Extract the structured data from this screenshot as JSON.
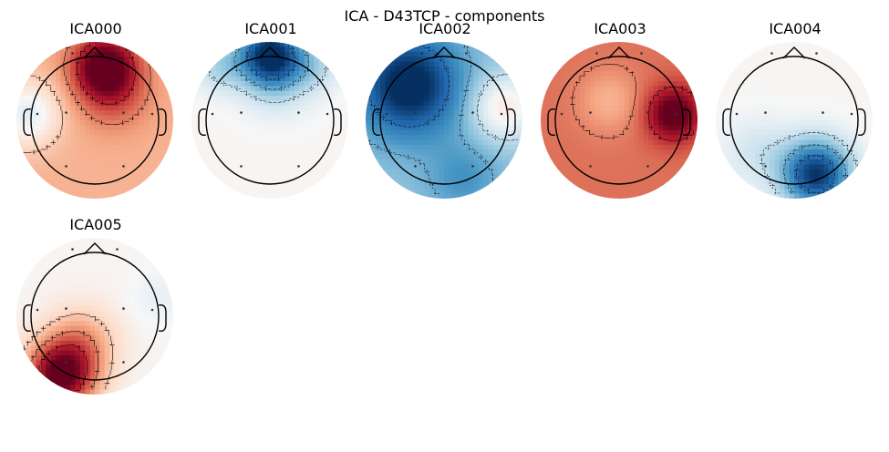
{
  "figure": {
    "title": "ICA - D43TCP - components"
  },
  "chart_data": {
    "type": "heatmap",
    "title": "ICA - D43TCP - components",
    "colormap": "RdBu_r",
    "colormap_stops": [
      "#053061",
      "#2166ac",
      "#4393c3",
      "#92c5de",
      "#d1e5f0",
      "#f7f7f7",
      "#fddbc7",
      "#f4a582",
      "#d6604d",
      "#b2182b",
      "#67001f"
    ],
    "head_outline_color": "#000000",
    "sensor_color": "#333333",
    "sensors": [
      {
        "x": -0.35,
        "y": 1.05
      },
      {
        "x": 0.35,
        "y": 1.05
      },
      {
        "x": -0.9,
        "y": 0.1
      },
      {
        "x": -0.45,
        "y": 0.12
      },
      {
        "x": 0.45,
        "y": 0.12
      },
      {
        "x": 0.9,
        "y": 0.1
      },
      {
        "x": -0.45,
        "y": -0.72
      },
      {
        "x": 0.45,
        "y": -0.72
      }
    ],
    "components": [
      {
        "name": "ICA000",
        "values": [
          0.55,
          0.85,
          -0.05,
          0.25,
          0.75,
          0.3,
          0.35,
          0.4
        ],
        "field": {
          "base": 0.35,
          "blobs": [
            {
              "x": 0.15,
              "y": 0.85,
              "a": 0.75,
              "s": 0.35
            },
            {
              "x": -1.05,
              "y": 0.1,
              "a": -0.45,
              "s": 0.35
            },
            {
              "x": 0.3,
              "y": 0.4,
              "a": 0.25,
              "s": 0.4
            }
          ]
        }
      },
      {
        "name": "ICA001",
        "values": [
          -0.8,
          -0.7,
          -0.1,
          -0.1,
          -0.05,
          0.0,
          0.02,
          0.0
        ],
        "field": {
          "base": 0.02,
          "blobs": [
            {
              "x": 0.0,
              "y": 1.05,
              "a": -1.0,
              "s": 0.35
            },
            {
              "x": -0.8,
              "y": 0.85,
              "a": -0.3,
              "s": 0.3
            },
            {
              "x": 0.7,
              "y": 0.85,
              "a": -0.25,
              "s": 0.3
            },
            {
              "x": 0.1,
              "y": 0.6,
              "a": -0.25,
              "s": 0.4
            }
          ]
        }
      },
      {
        "name": "ICA002",
        "values": [
          -0.9,
          -0.5,
          -0.8,
          -0.85,
          -0.3,
          -0.15,
          -0.55,
          -0.4
        ],
        "field": {
          "base": -0.4,
          "blobs": [
            {
              "x": -0.55,
              "y": 0.55,
              "a": -0.7,
              "s": 0.55
            },
            {
              "x": 0.95,
              "y": 0.2,
              "a": 0.5,
              "s": 0.35
            },
            {
              "x": 0.3,
              "y": -0.9,
              "a": -0.2,
              "s": 0.4
            }
          ]
        }
      },
      {
        "name": "ICA003",
        "values": [
          0.45,
          0.5,
          0.5,
          0.35,
          0.55,
          0.95,
          0.6,
          0.65
        ],
        "field": {
          "base": 0.55,
          "blobs": [
            {
              "x": 0.85,
              "y": 0.1,
              "a": 0.55,
              "s": 0.3
            },
            {
              "x": -0.15,
              "y": 0.3,
              "a": -0.2,
              "s": 0.35
            }
          ]
        }
      },
      {
        "name": "ICA004",
        "values": [
          0.0,
          0.02,
          0.0,
          0.0,
          0.0,
          0.05,
          -0.25,
          -0.9
        ],
        "field": {
          "base": 0.02,
          "blobs": [
            {
              "x": 0.35,
              "y": -0.85,
              "a": -1.0,
              "s": 0.4
            },
            {
              "x": -0.6,
              "y": -0.5,
              "a": -0.2,
              "s": 0.4
            }
          ]
        }
      },
      {
        "name": "ICA005",
        "values": [
          0.02,
          0.0,
          0.3,
          0.1,
          -0.05,
          -0.1,
          0.95,
          0.6
        ],
        "field": {
          "base": 0.02,
          "blobs": [
            {
              "x": -0.55,
              "y": -0.95,
              "a": 1.0,
              "s": 0.4
            },
            {
              "x": -0.2,
              "y": -0.4,
              "a": 0.35,
              "s": 0.4
            },
            {
              "x": 1.0,
              "y": 0.3,
              "a": -0.1,
              "s": 0.3
            }
          ]
        }
      }
    ]
  }
}
